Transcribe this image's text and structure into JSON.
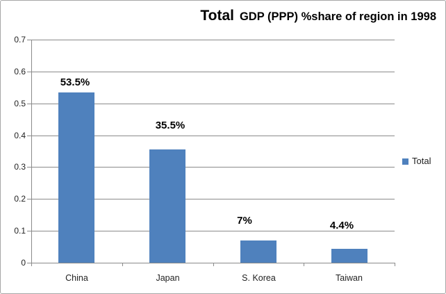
{
  "title": {
    "main": "Total",
    "sub": "GDP (PPP) %share of region in 1998"
  },
  "legend": {
    "label": "Total"
  },
  "colors": {
    "bar": "#4F81BD",
    "gridline": "#8A8A8A",
    "axis": "#8A8A8A",
    "border": "#A6A6A6",
    "text": "#1F1F1F",
    "title_text": "#000000"
  },
  "chart_data": {
    "type": "bar",
    "title": "Total GDP (PPP) %share of region in 1998",
    "categories": [
      "China",
      "Japan",
      "S. Korea",
      "Taiwan"
    ],
    "series": [
      {
        "name": "Total",
        "values": [
          0.535,
          0.355,
          0.07,
          0.044
        ]
      }
    ],
    "data_labels": [
      "53.5%",
      "35.5%",
      "7%",
      "4.4%"
    ],
    "xlabel": "",
    "ylabel": "",
    "ylim": [
      0,
      0.7
    ],
    "yticks": [
      0,
      0.1,
      0.2,
      0.3,
      0.4,
      0.5,
      0.6,
      0.7
    ],
    "ytick_labels": [
      "0",
      "0.1",
      "0.2",
      "0.3",
      "0.4",
      "0.5",
      "0.6",
      "0.7"
    ],
    "grid": true,
    "legend_position": "right",
    "legend_entries": [
      "Total"
    ]
  }
}
